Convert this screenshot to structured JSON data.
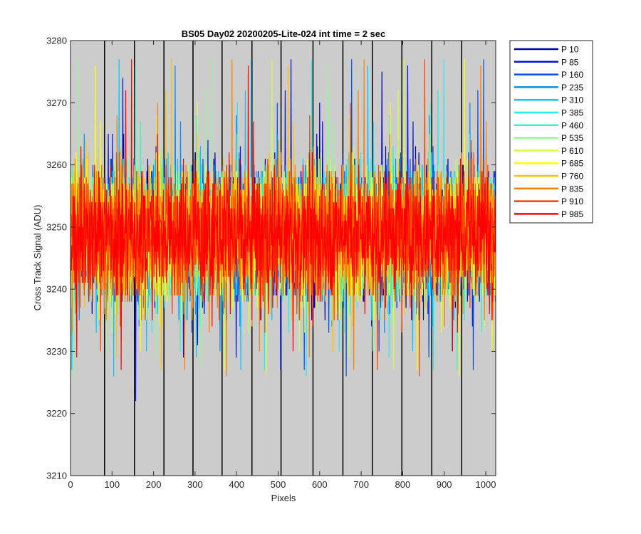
{
  "chart_data": {
    "type": "line",
    "title": "BS05 Day02 20200205-Lite-024 int time = 2 sec",
    "xlabel": "Pixels",
    "ylabel": "Cross Track Signal (ADU)",
    "xlim": [
      0,
      1024
    ],
    "ylim": [
      3210,
      3280
    ],
    "xticks": [
      0,
      100,
      200,
      300,
      400,
      500,
      600,
      700,
      800,
      900,
      1000
    ],
    "yticks": [
      3210,
      3220,
      3230,
      3240,
      3250,
      3260,
      3270,
      3280
    ],
    "background": "#cccccc",
    "legend_position": "outside-top-right",
    "tap_boundaries": [
      0,
      82,
      154,
      225,
      295,
      365,
      437,
      507,
      584,
      656,
      727,
      798,
      870,
      942
    ],
    "noise": {
      "mean": 3249,
      "typical_min": 3234,
      "typical_max": 3264,
      "extreme_min": 3218,
      "extreme_max": 3277,
      "n_points": 1024
    },
    "series": [
      {
        "name": "P 10",
        "color": "#0000b4"
      },
      {
        "name": "P 85",
        "color": "#0010e6"
      },
      {
        "name": "P 160",
        "color": "#0050f0"
      },
      {
        "name": "P 235",
        "color": "#0090f8"
      },
      {
        "name": "P 310",
        "color": "#00c8ff"
      },
      {
        "name": "P 385",
        "color": "#20f0f0"
      },
      {
        "name": "P 460",
        "color": "#40f0c0"
      },
      {
        "name": "P 535",
        "color": "#90f890"
      },
      {
        "name": "P 610",
        "color": "#d0ff40"
      },
      {
        "name": "P 685",
        "color": "#ffff00"
      },
      {
        "name": "P 760",
        "color": "#ffc000"
      },
      {
        "name": "P 835",
        "color": "#ff8000"
      },
      {
        "name": "P 910",
        "color": "#ff4000"
      },
      {
        "name": "P 985",
        "color": "#ff0000"
      }
    ]
  }
}
